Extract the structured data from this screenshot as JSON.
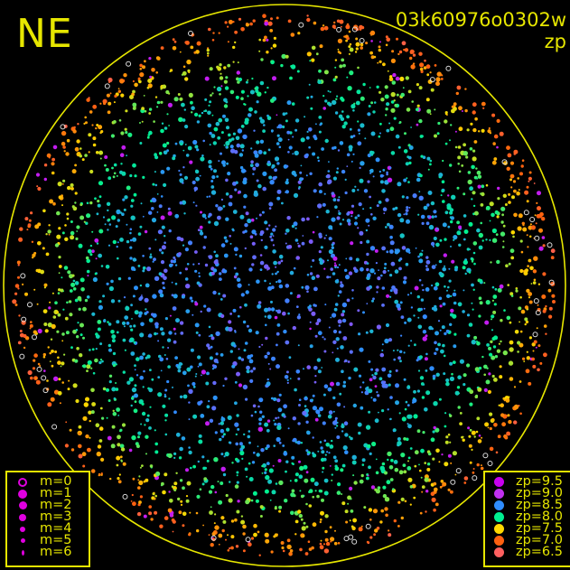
{
  "direction_label": "NE",
  "title": "03k60976o0302w",
  "subtitle": "zp",
  "colors": {
    "foreground": "#e6e600",
    "background": "#000000"
  },
  "chart_data": {
    "type": "scatter",
    "description_kind": "all-sky star map, points sized by magnitude and colored by zero point",
    "magnitude_legend": [
      {
        "label": "m=0",
        "size": 0,
        "style": "open"
      },
      {
        "label": "m=1",
        "size": 1
      },
      {
        "label": "m=2",
        "size": 2
      },
      {
        "label": "m=3",
        "size": 3
      },
      {
        "label": "m=4",
        "size": 4
      },
      {
        "label": "m=5",
        "size": 5
      },
      {
        "label": "m=6",
        "size": 6
      }
    ],
    "zp_legend": [
      {
        "label": "zp=9.5",
        "zp": 9.5,
        "color": "#c800f0"
      },
      {
        "label": "zp=9.0",
        "zp": 9.0,
        "color": "#c030f0"
      },
      {
        "label": "zp=8.5",
        "zp": 8.5,
        "color": "#2f8cff"
      },
      {
        "label": "zp=8.0",
        "zp": 8.0,
        "color": "#00f090"
      },
      {
        "label": "zp=7.5",
        "zp": 7.5,
        "color": "#ffd800"
      },
      {
        "label": "zp=7.0",
        "zp": 7.0,
        "color": "#ff6010"
      },
      {
        "label": "zp=6.5",
        "zp": 6.5,
        "color": "#ff6060"
      }
    ]
  }
}
